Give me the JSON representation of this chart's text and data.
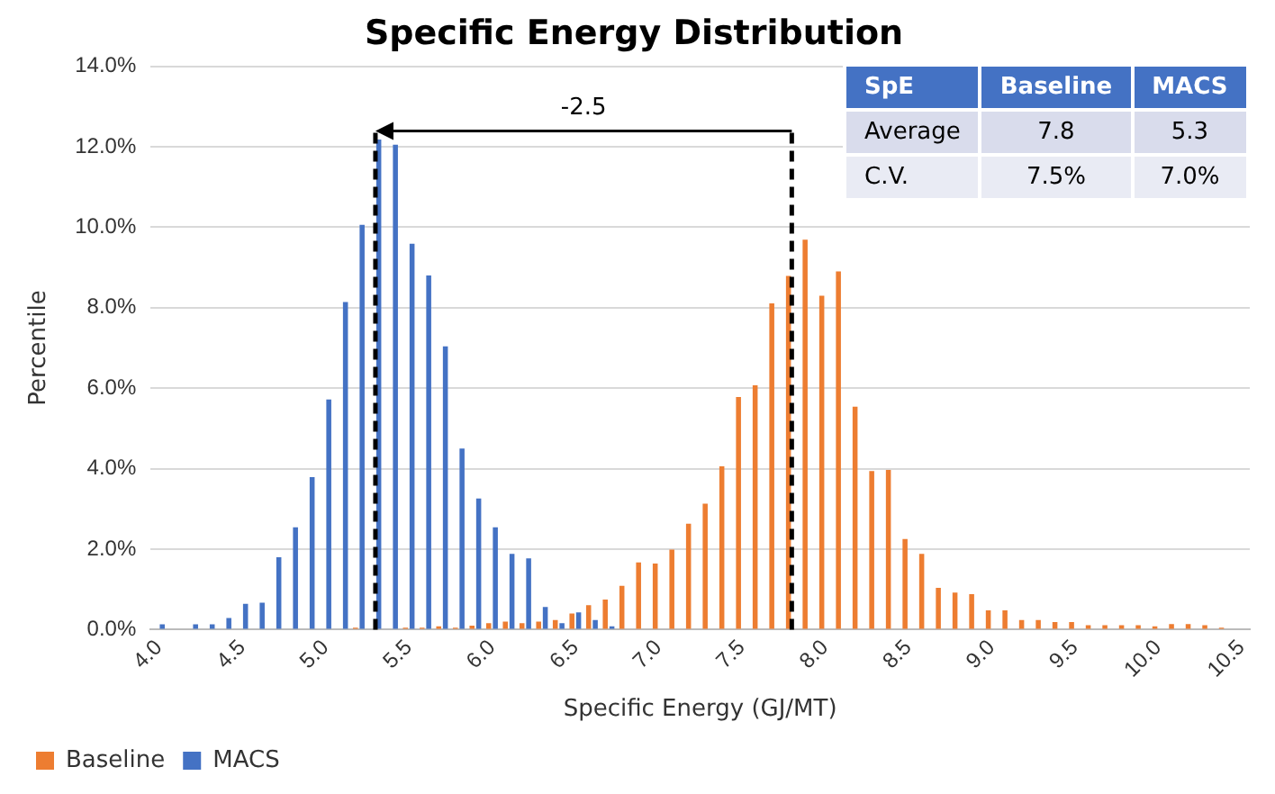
{
  "chart_data": {
    "type": "bar",
    "title": "Specific Energy Distribution",
    "xlabel": "Specific Energy (GJ/MT)",
    "ylabel": "Percentile",
    "x": [
      4.0,
      4.1,
      4.2,
      4.3,
      4.4,
      4.5,
      4.6,
      4.7,
      4.8,
      4.9,
      5.0,
      5.1,
      5.2,
      5.3,
      5.4,
      5.5,
      5.6,
      5.7,
      5.8,
      5.9,
      6.0,
      6.1,
      6.2,
      6.3,
      6.4,
      6.5,
      6.6,
      6.7,
      6.8,
      6.9,
      7.0,
      7.1,
      7.2,
      7.3,
      7.4,
      7.5,
      7.6,
      7.7,
      7.8,
      7.9,
      8.0,
      8.1,
      8.2,
      8.3,
      8.4,
      8.5,
      8.6,
      8.7,
      8.8,
      8.9,
      9.0,
      9.1,
      9.2,
      9.3,
      9.4,
      9.5,
      9.6,
      9.7,
      9.8,
      9.9,
      10.0,
      10.1,
      10.2,
      10.3,
      10.4,
      10.5
    ],
    "series": [
      {
        "name": "Baseline",
        "color": "#ed7d31",
        "values": [
          0,
          0,
          0,
          0,
          0,
          0,
          0,
          0,
          0,
          0,
          0,
          0,
          0.05,
          0,
          0,
          0.05,
          0.05,
          0.08,
          0.05,
          0.1,
          0.16,
          0.2,
          0.16,
          0.2,
          0.24,
          0.4,
          0.61,
          0.75,
          1.09,
          1.67,
          1.64,
          1.99,
          2.63,
          3.13,
          4.06,
          5.78,
          6.07,
          8.11,
          8.79,
          9.69,
          8.3,
          8.9,
          5.54,
          3.94,
          3.97,
          2.25,
          1.88,
          1.04,
          0.92,
          0.88,
          0.48,
          0.48,
          0.24,
          0.24,
          0.19,
          0.19,
          0.11,
          0.11,
          0.11,
          0.11,
          0.08,
          0.14,
          0.14,
          0.11,
          0.05,
          0
        ]
      },
      {
        "name": "MACS",
        "color": "#4472c4",
        "values": [
          0.13,
          0,
          0.13,
          0.13,
          0.29,
          0.64,
          0.67,
          1.8,
          2.54,
          3.79,
          5.72,
          8.14,
          10.06,
          12.18,
          12.05,
          9.59,
          8.8,
          7.04,
          4.5,
          3.26,
          2.54,
          1.88,
          1.77,
          0.56,
          0.16,
          0.43,
          0.24,
          0.08,
          0,
          0,
          0,
          0,
          0,
          0,
          0,
          0,
          0,
          0,
          0,
          0,
          0,
          0,
          0,
          0,
          0,
          0,
          0,
          0,
          0,
          0,
          0,
          0,
          0,
          0,
          0,
          0,
          0,
          0,
          0,
          0,
          0,
          0,
          0,
          0,
          0,
          0
        ]
      }
    ],
    "xlim": [
      3.95,
      10.55
    ],
    "xticks": [
      {
        "value": 4,
        "label": "4.0"
      },
      {
        "value": 4.5,
        "label": "4.5"
      },
      {
        "value": 5,
        "label": "5.0"
      },
      {
        "value": 5.5,
        "label": "5.5"
      },
      {
        "value": 6,
        "label": "6.0"
      },
      {
        "value": 6.5,
        "label": "6.5"
      },
      {
        "value": 7,
        "label": "7.0"
      },
      {
        "value": 7.5,
        "label": "7.5"
      },
      {
        "value": 8,
        "label": "8.0"
      },
      {
        "value": 8.5,
        "label": "8.5"
      },
      {
        "value": 9,
        "label": "9.0"
      },
      {
        "value": 9.5,
        "label": "9.5"
      },
      {
        "value": 10,
        "label": "10.0"
      },
      {
        "value": 10.5,
        "label": "10.5"
      }
    ],
    "ylim": [
      0,
      14
    ],
    "yticks": [
      {
        "value": 0,
        "label": "0.0%"
      },
      {
        "value": 2,
        "label": "2.0%"
      },
      {
        "value": 4,
        "label": "4.0%"
      },
      {
        "value": 6,
        "label": "6.0%"
      },
      {
        "value": 8,
        "label": "8.0%"
      },
      {
        "value": 10,
        "label": "10.0%"
      },
      {
        "value": 12,
        "label": "12.0%"
      },
      {
        "value": 14,
        "label": "14.0%"
      }
    ],
    "grid": "y",
    "legend": "bottom left",
    "ref_lines": [
      {
        "axis": "x",
        "value": 5.3,
        "color": "#000000",
        "line_style": "dashed"
      },
      {
        "axis": "x",
        "value": 7.8,
        "color": "#000000",
        "line_style": "dashed"
      }
    ],
    "annotations": [
      "-2.5",
      "SpE",
      "Baseline",
      "MACS",
      "Average",
      "7.8",
      "5.3",
      "C.V.",
      "7.5%",
      "7.0%"
    ]
  }
}
